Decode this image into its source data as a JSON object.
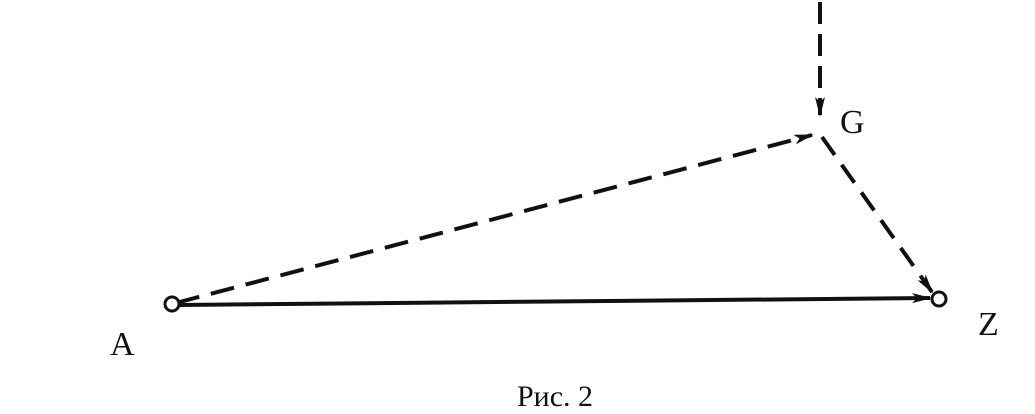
{
  "nodes": [
    {
      "label": "A"
    },
    {
      "label": "G"
    },
    {
      "label": "Z"
    }
  ],
  "caption": "Рис. 2"
}
